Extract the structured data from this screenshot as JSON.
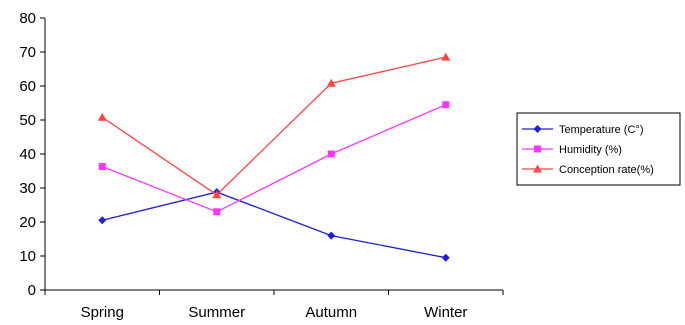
{
  "chart_data": {
    "type": "line",
    "categories": [
      "Spring",
      "Summer",
      "Autumn",
      "Winter"
    ],
    "ylim": [
      0,
      80
    ],
    "yticks": [
      0,
      10,
      20,
      30,
      40,
      50,
      60,
      70,
      80
    ],
    "grid": false,
    "legend_position": "right",
    "series": [
      {
        "name": "Temperature (C°)",
        "color": "#1f1fd6",
        "marker": "diamond",
        "values": [
          20.5,
          28.8,
          16.0,
          9.5
        ]
      },
      {
        "name": "Humidity (%)",
        "color": "#ff33ff",
        "marker": "square",
        "values": [
          36.3,
          23.0,
          40.0,
          54.5
        ]
      },
      {
        "name": "Conception rate(%)",
        "color": "#ff4444",
        "marker": "triangle",
        "values": [
          50.8,
          28.0,
          60.8,
          68.5
        ]
      }
    ]
  }
}
